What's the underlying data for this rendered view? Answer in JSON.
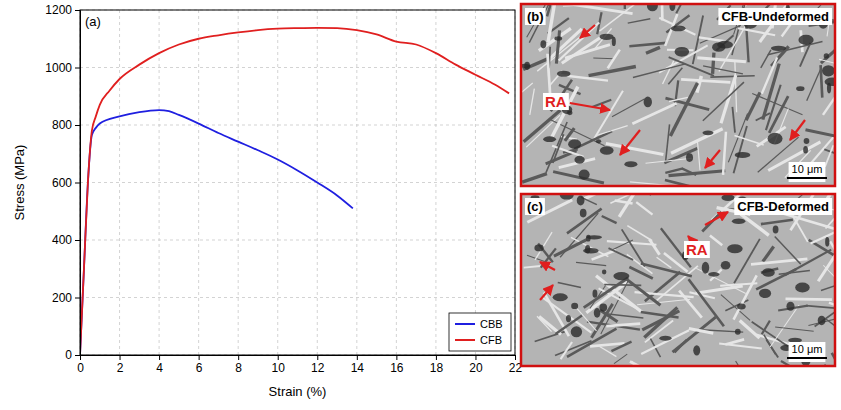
{
  "chart_data": {
    "type": "line",
    "title": "(a)",
    "x_label": "Strain (%)",
    "y_label": "Stress (MPa)",
    "xlim": [
      0,
      22
    ],
    "ylim": [
      0,
      1200
    ],
    "xticks": [
      0,
      2,
      4,
      6,
      8,
      10,
      12,
      14,
      16,
      18,
      20,
      22
    ],
    "yticks": [
      0,
      200,
      400,
      600,
      800,
      1000,
      1200
    ],
    "grid": true,
    "legend": "lower right",
    "marker": "none",
    "line_style": "solid",
    "series": [
      {
        "name": "CBB",
        "color": "#1f1fe0",
        "x": [
          0,
          0.2,
          0.4,
          0.6,
          0.8,
          1,
          2,
          3,
          4,
          4.5,
          5,
          6,
          7,
          8,
          9,
          10,
          11,
          12,
          13,
          13.8
        ],
        "values": [
          0,
          300,
          600,
          765,
          790,
          805,
          830,
          845,
          852,
          848,
          835,
          805,
          772,
          742,
          712,
          680,
          642,
          600,
          555,
          510
        ]
      },
      {
        "name": "CFB",
        "color": "#e01f1f",
        "x": [
          0,
          0.2,
          0.4,
          0.6,
          0.8,
          1,
          1.5,
          2,
          3,
          4,
          5,
          6,
          7,
          8,
          9,
          10,
          11,
          12,
          13,
          14,
          15,
          16,
          17,
          18,
          19,
          20,
          21,
          21.7
        ],
        "values": [
          0,
          300,
          600,
          780,
          830,
          870,
          920,
          960,
          1010,
          1050,
          1080,
          1100,
          1112,
          1122,
          1130,
          1135,
          1137,
          1138,
          1137,
          1130,
          1115,
          1090,
          1080,
          1050,
          1010,
          975,
          940,
          910
        ]
      }
    ]
  },
  "micrographs": [
    {
      "letter": "(b)",
      "title": "CFB-Undeformed",
      "annotation": "RA",
      "scale_bar": "10 μm"
    },
    {
      "letter": "(c)",
      "title": "CFB-Deformed",
      "annotation": "RA",
      "scale_bar": "10 μm"
    }
  ]
}
